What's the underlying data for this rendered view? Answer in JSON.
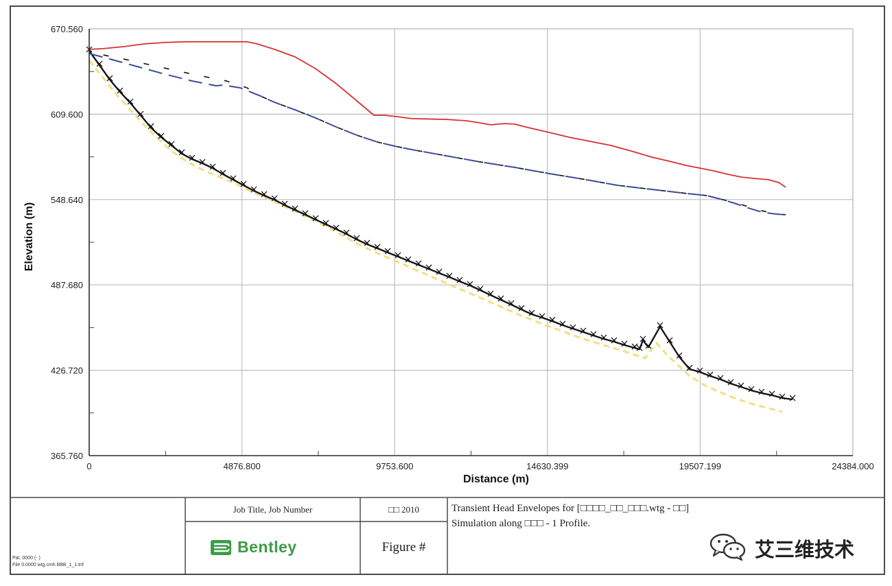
{
  "chart_data": {
    "type": "line",
    "title": "Transient Head Envelopes for [□□□□_□□_□□□.wtg - □□]",
    "subtitle": "Simulation along □□□ - 1 Profile.",
    "xlabel": "Distance (m)",
    "ylabel": "Elevation (m)",
    "xlim": [
      0,
      24384
    ],
    "ylim": [
      365.76,
      670.56
    ],
    "grid": true,
    "x_ticks": [
      {
        "value": 0,
        "label": "0"
      },
      {
        "value": 4876.8,
        "label": "4876.800"
      },
      {
        "value": 9753.6,
        "label": "9753.600"
      },
      {
        "value": 14630.399,
        "label": "14630.399"
      },
      {
        "value": 19507.199,
        "label": "19507.199"
      },
      {
        "value": 24384,
        "label": "24384.000"
      }
    ],
    "y_ticks": [
      {
        "value": 670.56,
        "label": "670.560"
      },
      {
        "value": 609.6,
        "label": "609.600"
      },
      {
        "value": 548.64,
        "label": "548.640"
      },
      {
        "value": 487.68,
        "label": "487.680"
      },
      {
        "value": 426.72,
        "label": "426.720"
      },
      {
        "value": 365.76,
        "label": "365.760"
      }
    ],
    "series": [
      {
        "color": "#f0dc74",
        "points": [
          [
            0,
            648.0
          ],
          [
            438,
            635.8
          ],
          [
            876,
            623.5
          ],
          [
            1315,
            612.7
          ],
          [
            1753,
            602.0
          ],
          [
            2191,
            592.2
          ],
          [
            2629,
            583.3
          ],
          [
            3067,
            576.5
          ],
          [
            3505,
            571.1
          ],
          [
            3944,
            566.7
          ],
          [
            4382,
            562.8
          ],
          [
            4820,
            558.3
          ],
          [
            5258,
            553.4
          ],
          [
            5915,
            547.1
          ],
          [
            6573,
            540.2
          ],
          [
            7230,
            533.4
          ],
          [
            7887,
            525.5
          ],
          [
            8544,
            517.2
          ],
          [
            9202,
            510.3
          ],
          [
            9859,
            504.0
          ],
          [
            10516,
            497.6
          ],
          [
            11173,
            491.2
          ],
          [
            11830,
            484.8
          ],
          [
            12488,
            478.5
          ],
          [
            13145,
            472.1
          ],
          [
            13802,
            465.7
          ],
          [
            14460,
            459.9
          ],
          [
            15117,
            454.5
          ],
          [
            15774,
            449.1
          ],
          [
            16431,
            444.7
          ],
          [
            17089,
            440.2
          ],
          [
            17746,
            435.3
          ],
          [
            18118,
            446.1
          ],
          [
            18513,
            436.3
          ],
          [
            19170,
            422.6
          ],
          [
            19718,
            415.2
          ],
          [
            20375,
            408.9
          ],
          [
            21032,
            403.5
          ],
          [
            21689,
            399.6
          ],
          [
            22127,
            397.1
          ]
        ]
      },
      {
        "color": "#161616",
        "points": [
          [
            0,
            654.9
          ],
          [
            329,
            644.6
          ],
          [
            657,
            634.3
          ],
          [
            986,
            625.5
          ],
          [
            1315,
            617.6
          ],
          [
            1643,
            608.8
          ],
          [
            1972,
            600.0
          ],
          [
            2300,
            593.1
          ],
          [
            2629,
            587.3
          ],
          [
            2958,
            581.4
          ],
          [
            3286,
            577.5
          ],
          [
            3615,
            574.5
          ],
          [
            3944,
            571.1
          ],
          [
            4272,
            566.7
          ],
          [
            4601,
            562.8
          ],
          [
            4929,
            558.8
          ],
          [
            5258,
            554.9
          ],
          [
            5587,
            551.5
          ],
          [
            5915,
            548.5
          ],
          [
            6244,
            544.6
          ],
          [
            6573,
            541.2
          ],
          [
            6901,
            537.8
          ],
          [
            7230,
            534.3
          ],
          [
            7558,
            530.9
          ],
          [
            7887,
            527.5
          ],
          [
            8216,
            524.0
          ],
          [
            8544,
            520.1
          ],
          [
            8873,
            516.7
          ],
          [
            9202,
            513.8
          ],
          [
            9530,
            510.8
          ],
          [
            9859,
            507.9
          ],
          [
            10187,
            504.9
          ],
          [
            10516,
            502.0
          ],
          [
            10845,
            499.1
          ],
          [
            11173,
            496.1
          ],
          [
            11502,
            493.2
          ],
          [
            11830,
            490.2
          ],
          [
            12159,
            487.3
          ],
          [
            12488,
            483.9
          ],
          [
            12816,
            480.4
          ],
          [
            13145,
            477.0
          ],
          [
            13474,
            473.6
          ],
          [
            13802,
            470.1
          ],
          [
            14131,
            466.7
          ],
          [
            14460,
            464.3
          ],
          [
            14788,
            461.8
          ],
          [
            15117,
            458.9
          ],
          [
            15445,
            456.4
          ],
          [
            15774,
            454.0
          ],
          [
            16103,
            451.5
          ],
          [
            16431,
            449.1
          ],
          [
            16760,
            447.1
          ],
          [
            17089,
            444.7
          ],
          [
            17417,
            442.7
          ],
          [
            17571,
            441.7
          ],
          [
            17680,
            448.1
          ],
          [
            17855,
            443.2
          ],
          [
            18228,
            457.9
          ],
          [
            18535,
            447.1
          ],
          [
            18842,
            436.3
          ],
          [
            19170,
            427.5
          ],
          [
            19499,
            425.5
          ],
          [
            19828,
            422.6
          ],
          [
            20156,
            420.2
          ],
          [
            20484,
            417.2
          ],
          [
            20813,
            414.8
          ],
          [
            21142,
            412.3
          ],
          [
            21470,
            410.4
          ],
          [
            21799,
            408.9
          ],
          [
            22127,
            406.9
          ],
          [
            22456,
            405.9
          ]
        ]
      },
      {
        "color": "#3a4b9c",
        "points": [
          [
            0,
            652.9
          ],
          [
            657,
            649.0
          ],
          [
            1534,
            643.6
          ],
          [
            2410,
            638.2
          ],
          [
            3286,
            633.3
          ],
          [
            4053,
            629.9
          ],
          [
            4272,
            630.4
          ],
          [
            4820,
            628.4
          ],
          [
            5039,
            626.5
          ],
          [
            5477,
            622.5
          ],
          [
            5915,
            618.1
          ],
          [
            6573,
            612.7
          ],
          [
            7230,
            606.9
          ],
          [
            7887,
            600.5
          ],
          [
            8544,
            594.6
          ],
          [
            9202,
            589.7
          ],
          [
            9749,
            586.8
          ],
          [
            10297,
            584.3
          ],
          [
            11392,
            579.9
          ],
          [
            12488,
            575.5
          ],
          [
            13583,
            571.6
          ],
          [
            14679,
            567.2
          ],
          [
            15774,
            563.2
          ],
          [
            16869,
            558.8
          ],
          [
            17965,
            555.9
          ],
          [
            19060,
            553.0
          ],
          [
            19718,
            551.5
          ],
          [
            20156,
            549.0
          ],
          [
            20594,
            546.1
          ],
          [
            21032,
            542.7
          ],
          [
            21470,
            539.7
          ],
          [
            21908,
            538.3
          ],
          [
            22237,
            537.8
          ]
        ]
      },
      {
        "color": "#1a1a1a",
        "points": [
          [
            0,
            653.9
          ],
          [
            1095,
            649.0
          ],
          [
            2191,
            643.6
          ],
          [
            3286,
            638.2
          ],
          [
            4382,
            633.3
          ],
          [
            5039,
            628.4
          ],
          [
            5477,
            622.5
          ],
          [
            5915,
            618.1
          ],
          [
            6573,
            612.7
          ],
          [
            7230,
            606.9
          ],
          [
            7887,
            600.5
          ],
          [
            8544,
            594.6
          ],
          [
            9202,
            589.7
          ],
          [
            9749,
            586.8
          ],
          [
            10297,
            584.3
          ],
          [
            11392,
            579.9
          ],
          [
            12488,
            575.5
          ],
          [
            13583,
            571.6
          ],
          [
            14679,
            567.2
          ],
          [
            15774,
            563.2
          ],
          [
            16869,
            558.8
          ],
          [
            17965,
            555.9
          ],
          [
            19060,
            553.0
          ],
          [
            19718,
            551.5
          ],
          [
            20156,
            549.0
          ],
          [
            20594,
            546.6
          ],
          [
            21032,
            543.6
          ],
          [
            21470,
            540.7
          ],
          [
            21908,
            538.3
          ],
          [
            22237,
            537.8
          ]
        ]
      },
      {
        "color": "#d63030",
        "points": [
          [
            0,
            655.9
          ],
          [
            438,
            656.4
          ],
          [
            1095,
            657.8
          ],
          [
            1753,
            659.8
          ],
          [
            2410,
            660.8
          ],
          [
            3067,
            661.3
          ],
          [
            5039,
            661.3
          ],
          [
            5368,
            659.8
          ],
          [
            5915,
            655.9
          ],
          [
            6573,
            650.5
          ],
          [
            7230,
            642.1
          ],
          [
            7887,
            631.4
          ],
          [
            8544,
            619.1
          ],
          [
            9092,
            608.8
          ],
          [
            9421,
            608.8
          ],
          [
            9859,
            607.8
          ],
          [
            10297,
            606.4
          ],
          [
            11392,
            605.9
          ],
          [
            12050,
            604.9
          ],
          [
            12488,
            603.4
          ],
          [
            12816,
            602.0
          ],
          [
            13255,
            602.9
          ],
          [
            13583,
            602.5
          ],
          [
            14021,
            600.0
          ],
          [
            14679,
            596.6
          ],
          [
            15336,
            593.1
          ],
          [
            15993,
            590.2
          ],
          [
            16650,
            587.3
          ],
          [
            17308,
            583.3
          ],
          [
            17965,
            578.9
          ],
          [
            18622,
            575.5
          ],
          [
            19060,
            573.0
          ],
          [
            19499,
            571.1
          ],
          [
            19937,
            569.1
          ],
          [
            20375,
            566.7
          ],
          [
            20813,
            564.7
          ],
          [
            21251,
            563.7
          ],
          [
            21689,
            562.8
          ],
          [
            22018,
            560.8
          ],
          [
            22237,
            557.4
          ]
        ]
      }
    ]
  },
  "title_block": {
    "job_title": "Job Title, Job Number",
    "date": "□□ 2010",
    "logo_text": "Bentley",
    "figure": "Figure #",
    "file_line1": "Pat. 0000 (- )",
    "file_line2": "File 0.0000 wtg.cmh.BBB_1_1.tnf"
  },
  "watermark": {
    "icon": "wechat-icon",
    "text": "艾三维技术"
  }
}
